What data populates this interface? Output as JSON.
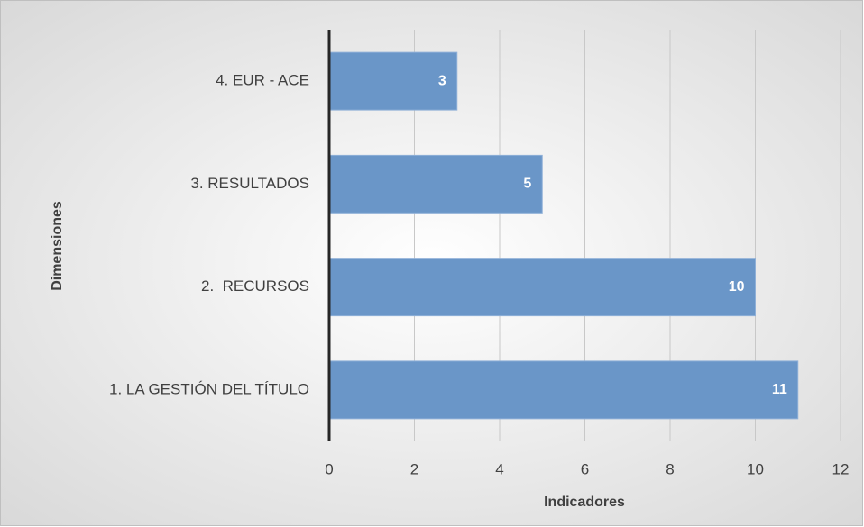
{
  "chart_data": {
    "type": "hbar",
    "categories": [
      "1. LA GESTIÓN DEL TÍTULO",
      "2.  RECURSOS",
      "3. RESULTADOS",
      "4. EUR - ACE"
    ],
    "values": [
      11,
      10,
      5,
      3
    ],
    "color": "#6a96c8",
    "xlabel": "Indicadores",
    "ylabel": "Dimensiones",
    "xlim": [
      0,
      12
    ],
    "xticks": [
      0,
      2,
      4,
      6,
      8,
      10,
      12
    ],
    "grid": true
  }
}
